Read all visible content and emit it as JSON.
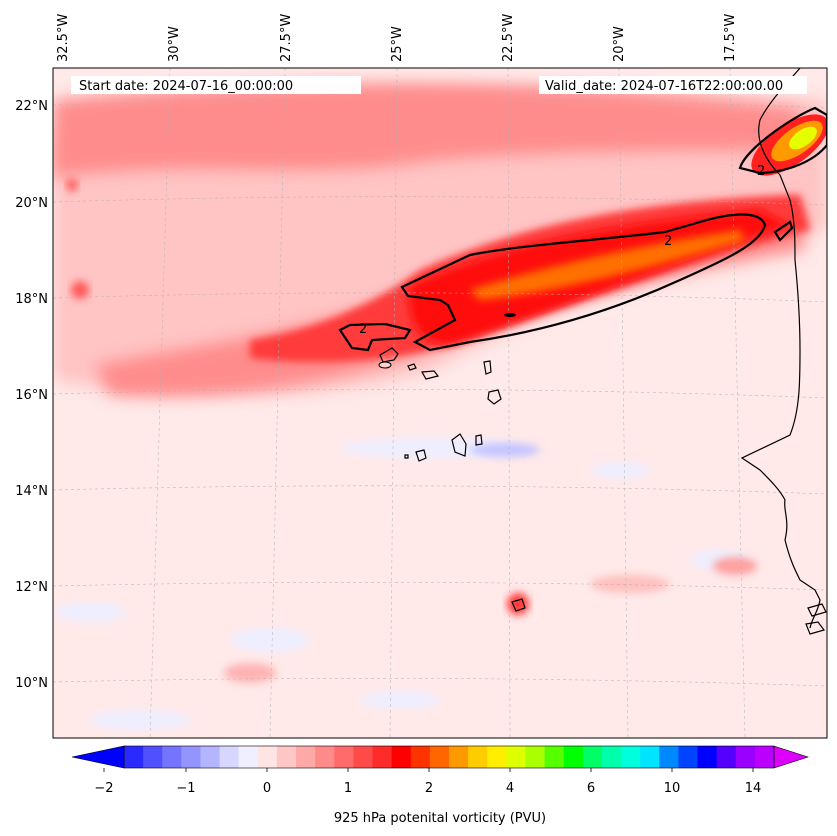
{
  "map": {
    "title_left": "Start date: 2024-07-16_00:00:00",
    "title_right": "Valid_date: 2024-07-16T22:00:00.00",
    "lon_labels": [
      "32.5°W",
      "30°W",
      "27.5°W",
      "25°W",
      "22.5°W",
      "20°W",
      "17.5°W"
    ],
    "lat_labels": [
      "22°N",
      "20°N",
      "18°N",
      "16°N",
      "14°N",
      "12°N",
      "10°N"
    ],
    "contour_labels": [
      "2",
      "2",
      "2"
    ],
    "extent": {
      "lon_min": -33.5,
      "lon_max": -16.5,
      "lat_min": 9.0,
      "lat_max": 22.7
    }
  },
  "colorbar": {
    "label": "925 hPa potenital vorticity (PVU)",
    "tick_labels": [
      "−2",
      "−1",
      "0",
      "1",
      "2",
      "4",
      "6",
      "10",
      "14"
    ],
    "colors": [
      "#0000ff",
      "#2a2aff",
      "#5050ff",
      "#7474ff",
      "#9494ff",
      "#b4b4ff",
      "#d6d6ff",
      "#efefff",
      "#ffe4e4",
      "#ffc6c6",
      "#ffa8a8",
      "#ff8a8a",
      "#ff6a6a",
      "#ff4a4a",
      "#ff2a2a",
      "#ff0000",
      "#ff3300",
      "#ff6600",
      "#ff9900",
      "#ffcc00",
      "#ffee00",
      "#ddff00",
      "#aaff00",
      "#55ff00",
      "#00ff00",
      "#00ff66",
      "#00ffaa",
      "#00ffdd",
      "#00e4ff",
      "#0088ff",
      "#0044ff",
      "#0000ff",
      "#5500ff",
      "#9900ff",
      "#bb00ff",
      "#dd00ff"
    ]
  }
}
